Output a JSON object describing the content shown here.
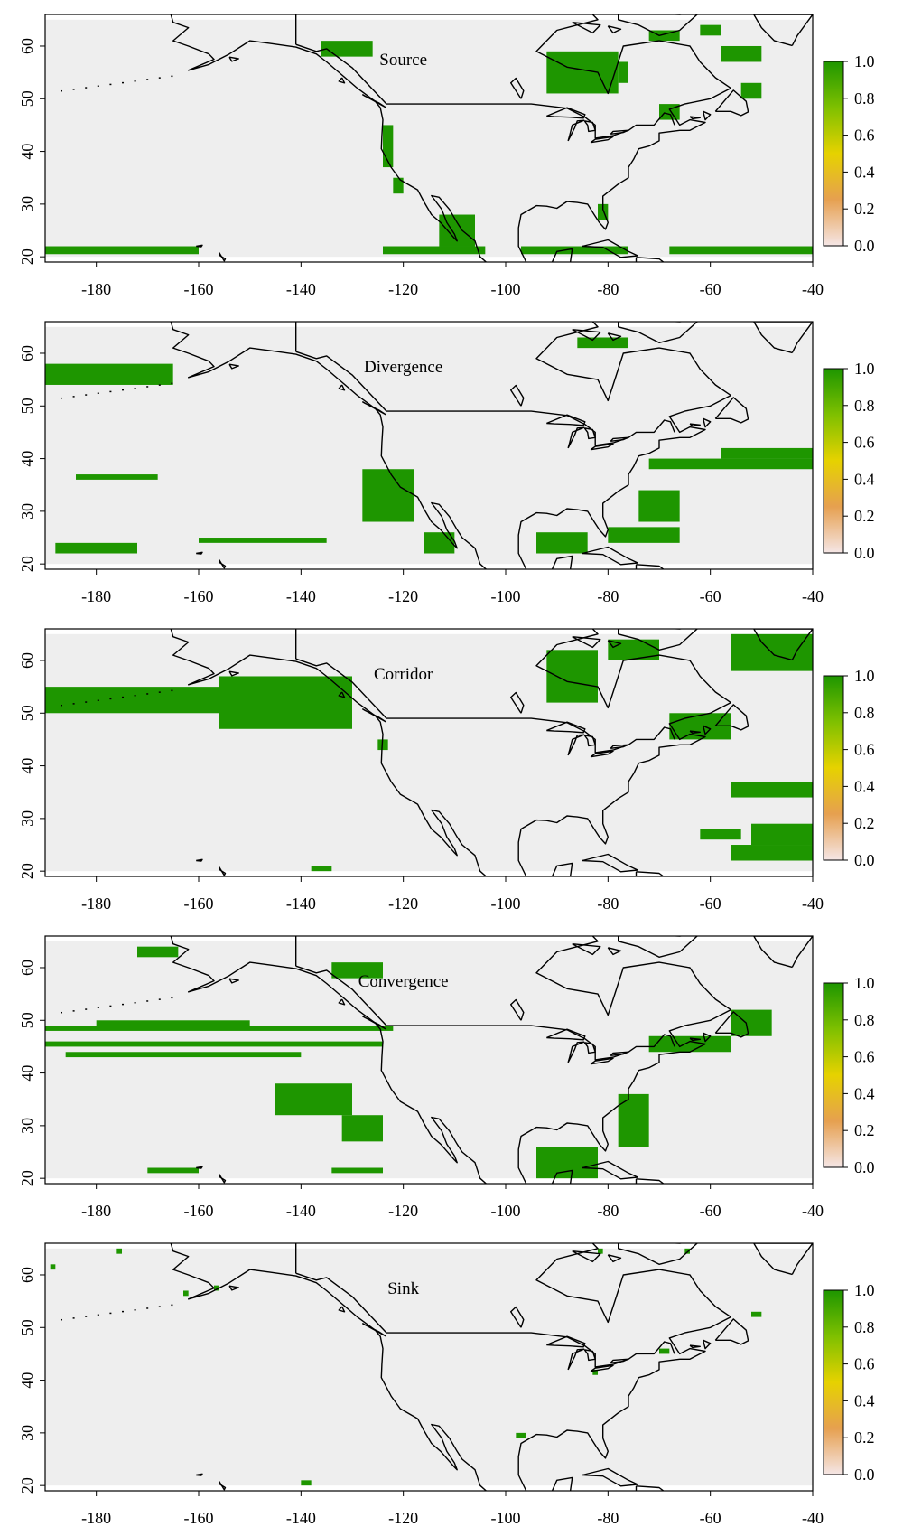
{
  "figure": {
    "extent": {
      "lon": [
        -190,
        -40
      ],
      "lat": [
        19,
        66
      ],
      "shaded_lat": [
        20,
        65
      ]
    },
    "x_ticks": [
      -180,
      -160,
      -140,
      -120,
      -100,
      -80,
      -60,
      -40
    ],
    "y_ticks": [
      20,
      30,
      40,
      50,
      60
    ],
    "colors": {
      "background": "#eeeeee",
      "cell": "#1e9600",
      "coast": "#000000",
      "colorbar": [
        "#f5e6e6",
        "#e6a050",
        "#e6d200",
        "#7fc000",
        "#1e9600"
      ]
    },
    "colorbar": {
      "ticks": [
        "0.0",
        "0.2",
        "0.4",
        "0.6",
        "0.8",
        "1.0"
      ]
    },
    "panels": [
      {
        "label": "Source",
        "cells": [
          [
            -190,
            20.5,
            -160,
            22
          ],
          [
            -124,
            20.5,
            -104,
            22
          ],
          [
            -97,
            20.5,
            -76,
            22
          ],
          [
            -68,
            20.5,
            -40,
            22
          ],
          [
            -124,
            37,
            -122,
            45
          ],
          [
            -122,
            32,
            -120,
            35
          ],
          [
            -113,
            22,
            -106,
            28
          ],
          [
            -82,
            27,
            -80,
            30
          ],
          [
            -92,
            51,
            -78,
            59
          ],
          [
            -78,
            53,
            -76,
            57
          ],
          [
            -58,
            57,
            -50,
            60
          ],
          [
            -54,
            50,
            -50,
            53
          ],
          [
            -136,
            58,
            -126,
            61
          ],
          [
            -70,
            46,
            -66,
            49
          ],
          [
            -62,
            62,
            -58,
            64
          ],
          [
            -72,
            61,
            -66,
            63
          ]
        ]
      },
      {
        "label": "Divergence",
        "cells": [
          [
            -190,
            54,
            -165,
            58
          ],
          [
            -188,
            22,
            -172,
            24
          ],
          [
            -184,
            36,
            -168,
            37
          ],
          [
            -160,
            24,
            -135,
            25
          ],
          [
            -128,
            28,
            -118,
            38
          ],
          [
            -116,
            22,
            -110,
            26
          ],
          [
            -94,
            22,
            -84,
            26
          ],
          [
            -72,
            38,
            -40,
            40
          ],
          [
            -58,
            40,
            -40,
            42
          ],
          [
            -80,
            24,
            -66,
            27
          ],
          [
            -74,
            28,
            -66,
            34
          ],
          [
            -86,
            61,
            -76,
            63
          ]
        ]
      },
      {
        "label": "Corridor",
        "cells": [
          [
            -190,
            50,
            -150,
            55
          ],
          [
            -156,
            47,
            -130,
            57
          ],
          [
            -125,
            43,
            -123,
            45
          ],
          [
            -56,
            58,
            -40,
            65
          ],
          [
            -68,
            45,
            -56,
            50
          ],
          [
            -56,
            34,
            -40,
            37
          ],
          [
            -52,
            25,
            -40,
            29
          ],
          [
            -56,
            22,
            -40,
            25
          ],
          [
            -62,
            26,
            -54,
            28
          ],
          [
            -92,
            52,
            -82,
            62
          ],
          [
            -80,
            60,
            -70,
            64
          ],
          [
            -138,
            20,
            -134,
            21
          ]
        ]
      },
      {
        "label": "Convergence",
        "cells": [
          [
            -190,
            48,
            -122,
            49
          ],
          [
            -190,
            45,
            -124,
            46
          ],
          [
            -186,
            43,
            -140,
            44
          ],
          [
            -180,
            49,
            -150,
            50
          ],
          [
            -170,
            21,
            -160,
            22
          ],
          [
            -134,
            21,
            -124,
            22
          ],
          [
            -145,
            32,
            -130,
            38
          ],
          [
            -132,
            27,
            -124,
            32
          ],
          [
            -94,
            20,
            -82,
            26
          ],
          [
            -78,
            26,
            -72,
            36
          ],
          [
            -72,
            44,
            -56,
            47
          ],
          [
            -56,
            47,
            -48,
            52
          ],
          [
            -134,
            58,
            -124,
            61
          ],
          [
            -172,
            62,
            -164,
            64
          ]
        ]
      },
      {
        "label": "Sink",
        "cells": [
          [
            -189,
            61,
            -188,
            62
          ],
          [
            -176,
            64,
            -175,
            65
          ],
          [
            -163,
            56,
            -162,
            57
          ],
          [
            -157,
            57,
            -156,
            58
          ],
          [
            -82,
            64,
            -81,
            65
          ],
          [
            -65,
            64,
            -64,
            65
          ],
          [
            -52,
            52,
            -50,
            53
          ],
          [
            -70,
            45,
            -68,
            46
          ],
          [
            -98,
            29,
            -96,
            30
          ],
          [
            -140,
            20,
            -138,
            21
          ],
          [
            -83,
            41,
            -82,
            42
          ]
        ]
      }
    ]
  }
}
